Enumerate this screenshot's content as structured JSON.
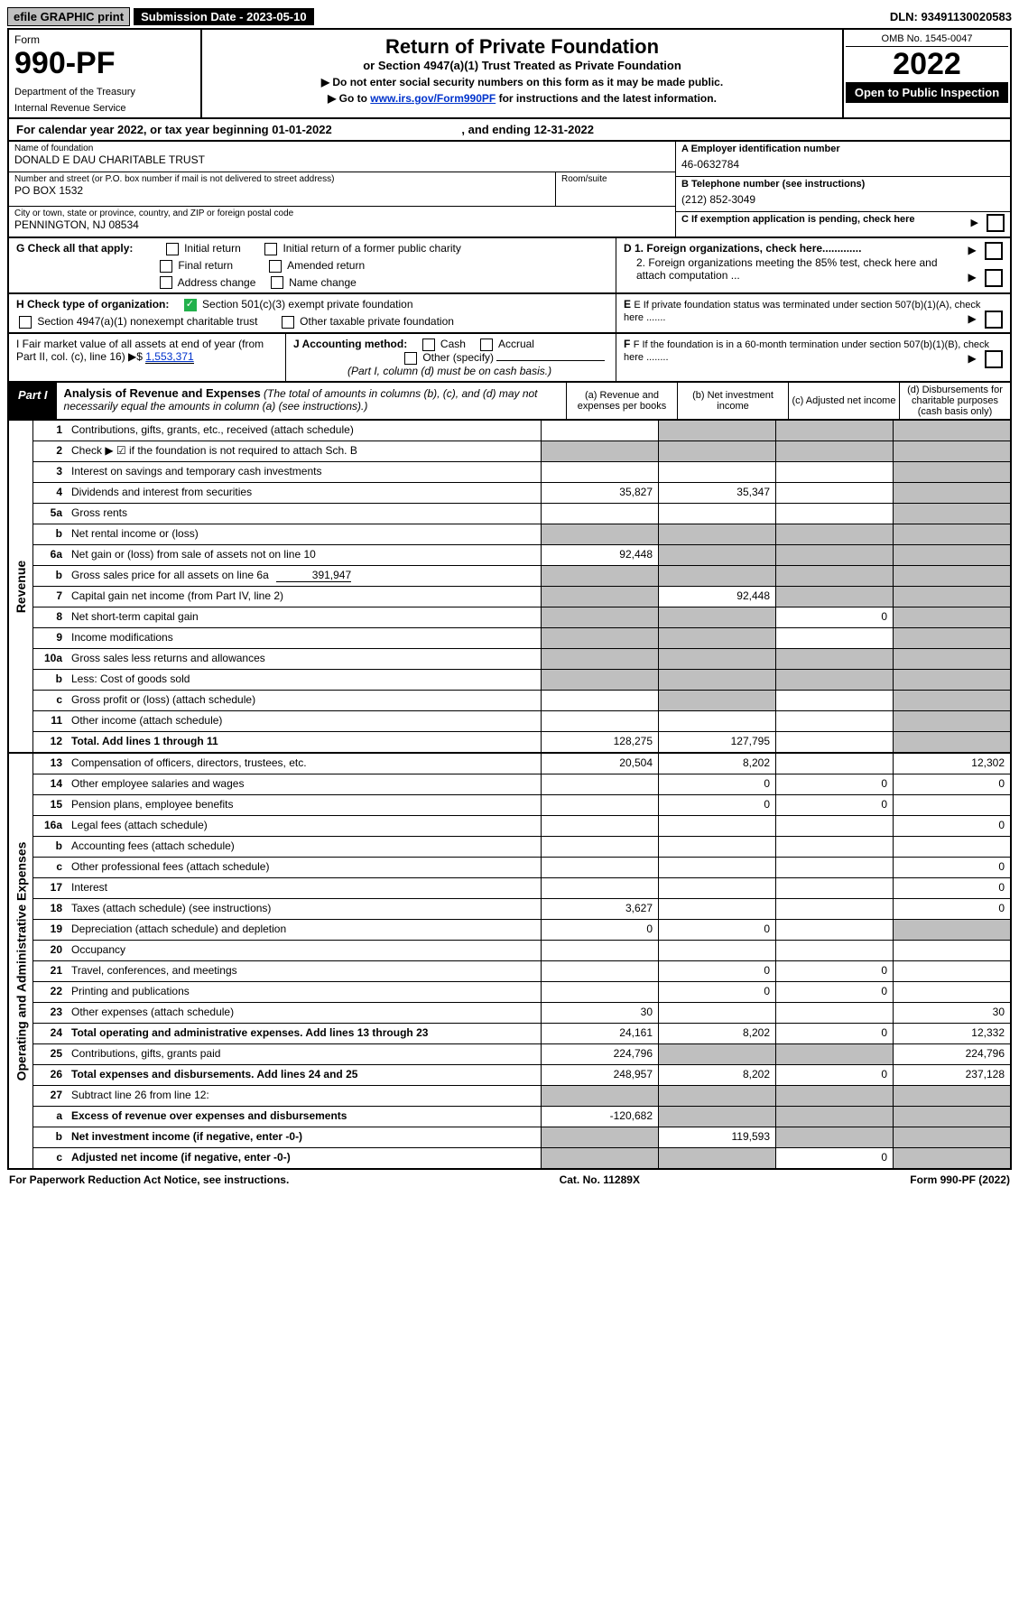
{
  "top": {
    "efile": "efile GRAPHIC print",
    "sub_label": "Submission Date - 2023-05-10",
    "dln": "DLN: 93491130020583"
  },
  "header": {
    "form_word": "Form",
    "form_num": "990-PF",
    "dept1": "Department of the Treasury",
    "dept2": "Internal Revenue Service",
    "title": "Return of Private Foundation",
    "subtitle": "or Section 4947(a)(1) Trust Treated as Private Foundation",
    "instr1": "▶ Do not enter social security numbers on this form as it may be made public.",
    "instr2_pre": "▶ Go to ",
    "instr2_link": "www.irs.gov/Form990PF",
    "instr2_post": " for instructions and the latest information.",
    "omb": "OMB No. 1545-0047",
    "year": "2022",
    "open": "Open to Public Inspection"
  },
  "calyr": "For calendar year 2022, or tax year beginning 01-01-2022",
  "calyr_end": ", and ending 12-31-2022",
  "name_label": "Name of foundation",
  "name": "DONALD E DAU CHARITABLE TRUST",
  "addr_label": "Number and street (or P.O. box number if mail is not delivered to street address)",
  "room_label": "Room/suite",
  "addr": "PO BOX 1532",
  "city_label": "City or town, state or province, country, and ZIP or foreign postal code",
  "city": "PENNINGTON, NJ  08534",
  "ein_label": "A Employer identification number",
  "ein": "46-0632784",
  "tel_label": "B Telephone number (see instructions)",
  "tel": "(212) 852-3049",
  "c_label": "C If exemption application is pending, check here",
  "d1": "D 1. Foreign organizations, check here.............",
  "d2": "2. Foreign organizations meeting the 85% test, check here and attach computation ...",
  "e_label": "E  If private foundation status was terminated under section 507(b)(1)(A), check here .......",
  "f_label": "F  If the foundation is in a 60-month termination under section 507(b)(1)(B), check here ........",
  "g_label": "G Check all that apply:",
  "g_opts": [
    "Initial return",
    "Initial return of a former public charity",
    "Final return",
    "Amended return",
    "Address change",
    "Name change"
  ],
  "h_label": "H Check type of organization:",
  "h_opt1": "Section 501(c)(3) exempt private foundation",
  "h_opt2": "Section 4947(a)(1) nonexempt charitable trust",
  "h_opt3": "Other taxable private foundation",
  "i_label": "I Fair market value of all assets at end of year (from Part II, col. (c), line 16) ▶$ ",
  "i_val": "1,553,371",
  "j_label": "J Accounting method:",
  "j_cash": "Cash",
  "j_accrual": "Accrual",
  "j_other": "Other (specify)",
  "j_note": "(Part I, column (d) must be on cash basis.)",
  "part1_label": "Part I",
  "part1_title": "Analysis of Revenue and Expenses",
  "part1_note": " (The total of amounts in columns (b), (c), and (d) may not necessarily equal the amounts in column (a) (see instructions).)",
  "col_a": "(a)   Revenue and expenses per books",
  "col_b": "(b)   Net investment income",
  "col_c": "(c)   Adjusted net income",
  "col_d": "(d)  Disbursements for charitable purposes (cash basis only)",
  "side_revenue": "Revenue",
  "side_expenses": "Operating and Administrative Expenses",
  "lines": {
    "1": {
      "n": "1",
      "d": "Contributions, gifts, grants, etc., received (attach schedule)",
      "a": "",
      "b": "grey",
      "c": "grey",
      "dd": "grey"
    },
    "2": {
      "n": "2",
      "d": "Check ▶ ☑ if the foundation is not required to attach Sch. B",
      "a": "grey",
      "b": "grey",
      "c": "grey",
      "dd": "grey"
    },
    "3": {
      "n": "3",
      "d": "Interest on savings and temporary cash investments",
      "a": "",
      "b": "",
      "c": "",
      "dd": "grey"
    },
    "4": {
      "n": "4",
      "d": "Dividends and interest from securities",
      "a": "35,827",
      "b": "35,347",
      "c": "",
      "dd": "grey"
    },
    "5a": {
      "n": "5a",
      "d": "Gross rents",
      "a": "",
      "b": "",
      "c": "",
      "dd": "grey"
    },
    "5b": {
      "n": "b",
      "d": "Net rental income or (loss)",
      "a": "grey",
      "b": "grey",
      "c": "grey",
      "dd": "grey"
    },
    "6a": {
      "n": "6a",
      "d": "Net gain or (loss) from sale of assets not on line 10",
      "a": "92,448",
      "b": "grey",
      "c": "grey",
      "dd": "grey"
    },
    "6b": {
      "n": "b",
      "d": "Gross sales price for all assets on line 6a",
      "v": "391,947",
      "a": "grey",
      "b": "grey",
      "c": "grey",
      "dd": "grey"
    },
    "7": {
      "n": "7",
      "d": "Capital gain net income (from Part IV, line 2)",
      "a": "grey",
      "b": "92,448",
      "c": "grey",
      "dd": "grey"
    },
    "8": {
      "n": "8",
      "d": "Net short-term capital gain",
      "a": "grey",
      "b": "grey",
      "c": "0",
      "dd": "grey"
    },
    "9": {
      "n": "9",
      "d": "Income modifications",
      "a": "grey",
      "b": "grey",
      "c": "",
      "dd": "grey"
    },
    "10a": {
      "n": "10a",
      "d": "Gross sales less returns and allowances",
      "a": "grey",
      "b": "grey",
      "c": "grey",
      "dd": "grey"
    },
    "10b": {
      "n": "b",
      "d": "Less: Cost of goods sold",
      "a": "grey",
      "b": "grey",
      "c": "grey",
      "dd": "grey"
    },
    "10c": {
      "n": "c",
      "d": "Gross profit or (loss) (attach schedule)",
      "a": "",
      "b": "grey",
      "c": "",
      "dd": "grey"
    },
    "11": {
      "n": "11",
      "d": "Other income (attach schedule)",
      "a": "",
      "b": "",
      "c": "",
      "dd": "grey"
    },
    "12": {
      "n": "12",
      "d": "Total. Add lines 1 through 11",
      "a": "128,275",
      "b": "127,795",
      "c": "",
      "dd": "grey",
      "bold": true
    },
    "13": {
      "n": "13",
      "d": "Compensation of officers, directors, trustees, etc.",
      "a": "20,504",
      "b": "8,202",
      "c": "",
      "dd": "12,302"
    },
    "14": {
      "n": "14",
      "d": "Other employee salaries and wages",
      "a": "",
      "b": "0",
      "c": "0",
      "dd": "0"
    },
    "15": {
      "n": "15",
      "d": "Pension plans, employee benefits",
      "a": "",
      "b": "0",
      "c": "0",
      "dd": ""
    },
    "16a": {
      "n": "16a",
      "d": "Legal fees (attach schedule)",
      "a": "",
      "b": "",
      "c": "",
      "dd": "0"
    },
    "16b": {
      "n": "b",
      "d": "Accounting fees (attach schedule)",
      "a": "",
      "b": "",
      "c": "",
      "dd": ""
    },
    "16c": {
      "n": "c",
      "d": "Other professional fees (attach schedule)",
      "a": "",
      "b": "",
      "c": "",
      "dd": "0"
    },
    "17": {
      "n": "17",
      "d": "Interest",
      "a": "",
      "b": "",
      "c": "",
      "dd": "0"
    },
    "18": {
      "n": "18",
      "d": "Taxes (attach schedule) (see instructions)",
      "a": "3,627",
      "b": "",
      "c": "",
      "dd": "0"
    },
    "19": {
      "n": "19",
      "d": "Depreciation (attach schedule) and depletion",
      "a": "0",
      "b": "0",
      "c": "",
      "dd": "grey"
    },
    "20": {
      "n": "20",
      "d": "Occupancy",
      "a": "",
      "b": "",
      "c": "",
      "dd": ""
    },
    "21": {
      "n": "21",
      "d": "Travel, conferences, and meetings",
      "a": "",
      "b": "0",
      "c": "0",
      "dd": ""
    },
    "22": {
      "n": "22",
      "d": "Printing and publications",
      "a": "",
      "b": "0",
      "c": "0",
      "dd": ""
    },
    "23": {
      "n": "23",
      "d": "Other expenses (attach schedule)",
      "a": "30",
      "b": "",
      "c": "",
      "dd": "30"
    },
    "24": {
      "n": "24",
      "d": "Total operating and administrative expenses. Add lines 13 through 23",
      "a": "24,161",
      "b": "8,202",
      "c": "0",
      "dd": "12,332",
      "bold": true
    },
    "25": {
      "n": "25",
      "d": "Contributions, gifts, grants paid",
      "a": "224,796",
      "b": "grey",
      "c": "grey",
      "dd": "224,796"
    },
    "26": {
      "n": "26",
      "d": "Total expenses and disbursements. Add lines 24 and 25",
      "a": "248,957",
      "b": "8,202",
      "c": "0",
      "dd": "237,128",
      "bold": true
    },
    "27": {
      "n": "27",
      "d": "Subtract line 26 from line 12:",
      "a": "grey",
      "b": "grey",
      "c": "grey",
      "dd": "grey"
    },
    "27a": {
      "n": "a",
      "d": "Excess of revenue over expenses and disbursements",
      "a": "-120,682",
      "b": "grey",
      "c": "grey",
      "dd": "grey",
      "bold": true
    },
    "27b": {
      "n": "b",
      "d": "Net investment income (if negative, enter -0-)",
      "a": "grey",
      "b": "119,593",
      "c": "grey",
      "dd": "grey",
      "bold": true
    },
    "27c": {
      "n": "c",
      "d": "Adjusted net income (if negative, enter -0-)",
      "a": "grey",
      "b": "grey",
      "c": "0",
      "dd": "grey",
      "bold": true
    }
  },
  "footer": {
    "left": "For Paperwork Reduction Act Notice, see instructions.",
    "mid": "Cat. No. 11289X",
    "right": "Form 990-PF (2022)"
  }
}
